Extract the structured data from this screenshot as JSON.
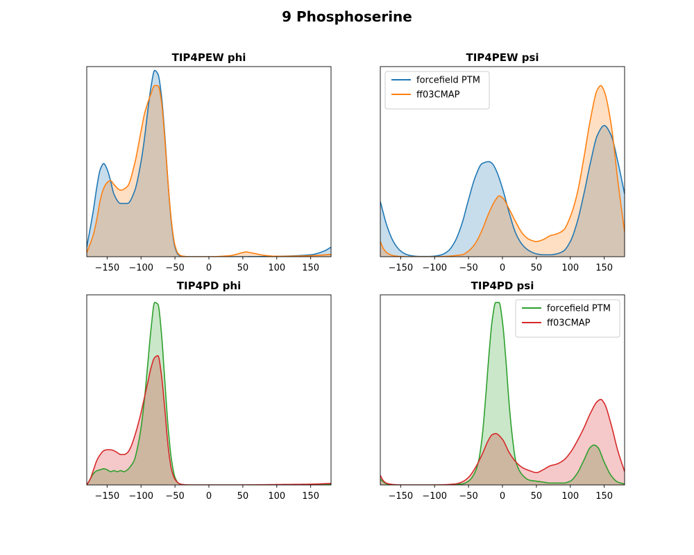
{
  "chart_data": {
    "title": "9 Phosphoserine",
    "panels": [
      {
        "type": "area",
        "title": "TIP4PEW phi",
        "xlim": [
          -180,
          180
        ],
        "ylim": [
          0,
          1
        ],
        "xticks": [
          -150,
          -100,
          -50,
          0,
          50,
          100,
          150
        ],
        "show_yticks": false,
        "legend": null,
        "series": [
          {
            "color": "#1f77b4",
            "x": [
              -180,
              -170,
              -165,
              -160,
              -155,
              -150,
              -145,
              -140,
              -130,
              -120,
              -110,
              -100,
              -95,
              -90,
              -85,
              -80,
              -75,
              -70,
              -65,
              -60,
              -55,
              -50,
              -45,
              -40,
              -30,
              0,
              50,
              100,
              150,
              170,
              180
            ],
            "values": [
              0.05,
              0.25,
              0.37,
              0.46,
              0.49,
              0.46,
              0.4,
              0.33,
              0.28,
              0.28,
              0.34,
              0.5,
              0.62,
              0.77,
              0.9,
              0.98,
              0.96,
              0.85,
              0.64,
              0.38,
              0.17,
              0.05,
              0.01,
              0.003,
              0.0,
              0.0,
              0.0,
              0.002,
              0.01,
              0.03,
              0.05
            ]
          },
          {
            "color": "#ff7f0e",
            "x": [
              -180,
              -170,
              -165,
              -160,
              -155,
              -150,
              -145,
              -140,
              -130,
              -120,
              -110,
              -100,
              -95,
              -90,
              -85,
              -80,
              -75,
              -70,
              -65,
              -60,
              -55,
              -50,
              -45,
              -40,
              -30,
              0,
              30,
              40,
              50,
              55,
              60,
              70,
              80,
              100,
              150,
              180
            ],
            "values": [
              0.02,
              0.12,
              0.2,
              0.3,
              0.36,
              0.39,
              0.4,
              0.38,
              0.35,
              0.37,
              0.48,
              0.66,
              0.75,
              0.81,
              0.86,
              0.9,
              0.9,
              0.82,
              0.62,
              0.38,
              0.18,
              0.06,
              0.015,
              0.004,
              0.0,
              0.0,
              0.005,
              0.012,
              0.022,
              0.025,
              0.022,
              0.015,
              0.008,
              0.002,
              0.005,
              0.012
            ]
          }
        ]
      },
      {
        "type": "area",
        "title": "TIP4PEW psi",
        "xlim": [
          -180,
          180
        ],
        "ylim": [
          0,
          1
        ],
        "xticks": [
          -150,
          -100,
          -50,
          0,
          50,
          100,
          150
        ],
        "show_yticks": false,
        "legend": {
          "loc": "upper left",
          "labels": [
            "forcefield PTM",
            "ff03CMAP"
          ]
        },
        "series": [
          {
            "name": "forcefield PTM",
            "color": "#1f77b4",
            "x": [
              -180,
              -170,
              -160,
              -150,
              -140,
              -130,
              -120,
              -110,
              -100,
              -90,
              -80,
              -70,
              -60,
              -50,
              -40,
              -30,
              -20,
              -15,
              -10,
              0,
              10,
              20,
              30,
              40,
              50,
              60,
              70,
              80,
              90,
              100,
              110,
              120,
              130,
              140,
              150,
              160,
              170,
              180
            ],
            "values": [
              0.29,
              0.16,
              0.075,
              0.03,
              0.01,
              0.003,
              0.001,
              0.001,
              0.003,
              0.01,
              0.03,
              0.08,
              0.17,
              0.3,
              0.42,
              0.49,
              0.5,
              0.49,
              0.46,
              0.36,
              0.23,
              0.12,
              0.06,
              0.03,
              0.015,
              0.01,
              0.01,
              0.015,
              0.03,
              0.08,
              0.18,
              0.33,
              0.5,
              0.64,
              0.69,
              0.64,
              0.5,
              0.33
            ]
          },
          {
            "name": "ff03CMAP",
            "color": "#ff7f0e",
            "x": [
              -180,
              -175,
              -170,
              -160,
              -150,
              -140,
              -100,
              -60,
              -50,
              -40,
              -30,
              -20,
              -10,
              -5,
              0,
              10,
              20,
              30,
              40,
              50,
              60,
              70,
              80,
              90,
              100,
              110,
              120,
              130,
              140,
              145,
              150,
              160,
              170,
              180
            ],
            "values": [
              0.08,
              0.04,
              0.02,
              0.005,
              0.001,
              0.0,
              0.0,
              0.01,
              0.03,
              0.07,
              0.14,
              0.23,
              0.3,
              0.32,
              0.31,
              0.25,
              0.18,
              0.12,
              0.09,
              0.08,
              0.09,
              0.11,
              0.12,
              0.14,
              0.21,
              0.33,
              0.52,
              0.73,
              0.88,
              0.9,
              0.87,
              0.7,
              0.4,
              0.13
            ]
          }
        ]
      },
      {
        "type": "area",
        "title": "TIP4PD phi",
        "xlim": [
          -180,
          180
        ],
        "ylim": [
          0,
          1
        ],
        "xticks": [
          -150,
          -100,
          -50,
          0,
          50,
          100,
          150
        ],
        "show_yticks": false,
        "legend": null,
        "series": [
          {
            "color": "#2ca02c",
            "x": [
              -180,
              -175,
              -170,
              -165,
              -160,
              -155,
              -150,
              -145,
              -140,
              -135,
              -130,
              -125,
              -120,
              -115,
              -110,
              -105,
              -100,
              -95,
              -90,
              -85,
              -80,
              -75,
              -70,
              -65,
              -60,
              -55,
              -50,
              -45,
              -40,
              -30,
              0,
              50,
              100,
              150,
              180
            ],
            "values": [
              0.0,
              0.03,
              0.06,
              0.075,
              0.08,
              0.085,
              0.08,
              0.07,
              0.075,
              0.07,
              0.075,
              0.07,
              0.08,
              0.1,
              0.13,
              0.2,
              0.3,
              0.45,
              0.64,
              0.83,
              0.96,
              0.95,
              0.8,
              0.55,
              0.3,
              0.13,
              0.04,
              0.01,
              0.002,
              0.0,
              0.0,
              0.0,
              0.0,
              0.002,
              0.005
            ]
          },
          {
            "color": "#d62728",
            "x": [
              -180,
              -175,
              -170,
              -165,
              -160,
              -155,
              -150,
              -145,
              -140,
              -135,
              -130,
              -125,
              -120,
              -115,
              -110,
              -105,
              -100,
              -95,
              -90,
              -85,
              -80,
              -75,
              -70,
              -65,
              -60,
              -55,
              -50,
              -45,
              -40,
              -30,
              0,
              50,
              100,
              150,
              180
            ],
            "values": [
              0.0,
              0.03,
              0.08,
              0.13,
              0.16,
              0.18,
              0.185,
              0.185,
              0.18,
              0.17,
              0.16,
              0.16,
              0.17,
              0.2,
              0.25,
              0.31,
              0.38,
              0.46,
              0.54,
              0.62,
              0.67,
              0.68,
              0.58,
              0.4,
              0.2,
              0.08,
              0.03,
              0.01,
              0.003,
              0.0,
              0.0,
              0.0,
              0.002,
              0.004,
              0.008
            ]
          }
        ]
      },
      {
        "type": "area",
        "title": "TIP4PD psi",
        "xlim": [
          -180,
          180
        ],
        "ylim": [
          0,
          1
        ],
        "xticks": [
          -150,
          -100,
          -50,
          0,
          50,
          100,
          150
        ],
        "show_yticks": false,
        "legend": {
          "loc": "upper right",
          "labels": [
            "forcefield PTM",
            "ff03CMAP"
          ]
        },
        "series": [
          {
            "name": "forcefield PTM",
            "color": "#2ca02c",
            "x": [
              -180,
              -170,
              -160,
              -150,
              -100,
              -60,
              -50,
              -40,
              -35,
              -30,
              -25,
              -20,
              -15,
              -10,
              -5,
              0,
              5,
              10,
              15,
              20,
              30,
              40,
              50,
              60,
              70,
              80,
              90,
              100,
              110,
              120,
              130,
              135,
              140,
              150,
              160,
              170,
              180
            ],
            "values": [
              0.03,
              0.005,
              0.0,
              0.0,
              0.0,
              0.005,
              0.02,
              0.07,
              0.13,
              0.25,
              0.45,
              0.68,
              0.87,
              0.96,
              0.96,
              0.86,
              0.66,
              0.42,
              0.24,
              0.12,
              0.05,
              0.025,
              0.02,
              0.015,
              0.01,
              0.01,
              0.01,
              0.02,
              0.06,
              0.13,
              0.2,
              0.21,
              0.2,
              0.12,
              0.05,
              0.015,
              0.005
            ]
          },
          {
            "name": "ff03CMAP",
            "color": "#d62728",
            "x": [
              -180,
              -175,
              -170,
              -160,
              -150,
              -100,
              -70,
              -60,
              -50,
              -40,
              -30,
              -20,
              -15,
              -10,
              0,
              10,
              20,
              30,
              40,
              50,
              60,
              70,
              80,
              90,
              100,
              110,
              120,
              130,
              140,
              145,
              150,
              160,
              170,
              180
            ],
            "values": [
              0.05,
              0.02,
              0.008,
              0.002,
              0.0,
              0.0,
              0.005,
              0.015,
              0.04,
              0.09,
              0.16,
              0.24,
              0.265,
              0.27,
              0.24,
              0.17,
              0.12,
              0.09,
              0.075,
              0.065,
              0.08,
              0.1,
              0.11,
              0.13,
              0.17,
              0.23,
              0.3,
              0.38,
              0.44,
              0.45,
              0.43,
              0.32,
              0.18,
              0.07
            ]
          }
        ]
      }
    ]
  }
}
